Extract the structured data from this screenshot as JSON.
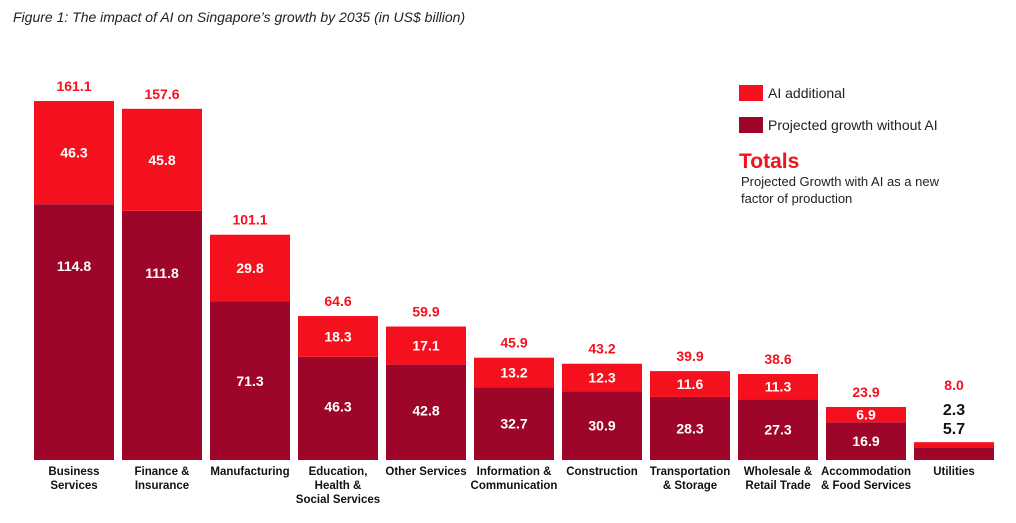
{
  "chart_data": {
    "type": "bar",
    "stacked": true,
    "title": "Figure 1: The impact of AI on Singapore’s growth by 2035 (in US$ billion)",
    "xlabel": "",
    "ylabel": "",
    "ylim": [
      0,
      161.1
    ],
    "grid": false,
    "legend_position": "top-right",
    "categories": [
      [
        "Business",
        "Services"
      ],
      [
        "Finance &",
        "Insurance"
      ],
      [
        "Manufacturing"
      ],
      [
        "Education,",
        "Health &",
        "Social Services"
      ],
      [
        "Other Services"
      ],
      [
        "Information &",
        "Communication"
      ],
      [
        "Construction"
      ],
      [
        "Transportation",
        "& Storage"
      ],
      [
        "Wholesale &",
        "Retail Trade"
      ],
      [
        "Accommodation",
        "& Food Services"
      ],
      [
        "Utilities"
      ]
    ],
    "series": [
      {
        "name": "Projected growth without AI",
        "color": "#9e0629",
        "values": [
          114.8,
          111.8,
          71.3,
          46.3,
          42.8,
          32.7,
          30.9,
          28.3,
          27.3,
          16.9,
          5.7
        ],
        "labels": [
          "114.8",
          "111.8",
          "71.3",
          "46.3",
          "42.8",
          "32.7",
          "30.9",
          "28.3",
          "27.3",
          "16.9",
          "5.7"
        ]
      },
      {
        "name": "AI additional",
        "color": "#f5101e",
        "values": [
          46.3,
          45.8,
          29.8,
          18.3,
          17.1,
          13.2,
          12.3,
          11.6,
          11.3,
          6.9,
          2.3
        ],
        "labels": [
          "46.3",
          "45.8",
          "29.8",
          "18.3",
          "17.1",
          "13.2",
          "12.3",
          "11.6",
          "11.3",
          "6.9",
          "2.3"
        ]
      }
    ],
    "totals": [
      161.1,
      157.6,
      101.1,
      64.6,
      59.9,
      45.9,
      43.2,
      39.9,
      38.6,
      23.9,
      8.0
    ],
    "total_labels": [
      "161.1",
      "157.6",
      "101.1",
      "64.6",
      "59.9",
      "45.9",
      "43.2",
      "39.9",
      "38.6",
      "23.9",
      "8.0"
    ],
    "totals_color": "#f5101e",
    "legend": [
      {
        "label": "AI additional",
        "color": "#f5101e"
      },
      {
        "label": "Projected growth without AI",
        "color": "#9e0629"
      }
    ],
    "annotation": {
      "heading": "Totals",
      "text": "Projected Growth with AI as a new factor of production"
    }
  }
}
